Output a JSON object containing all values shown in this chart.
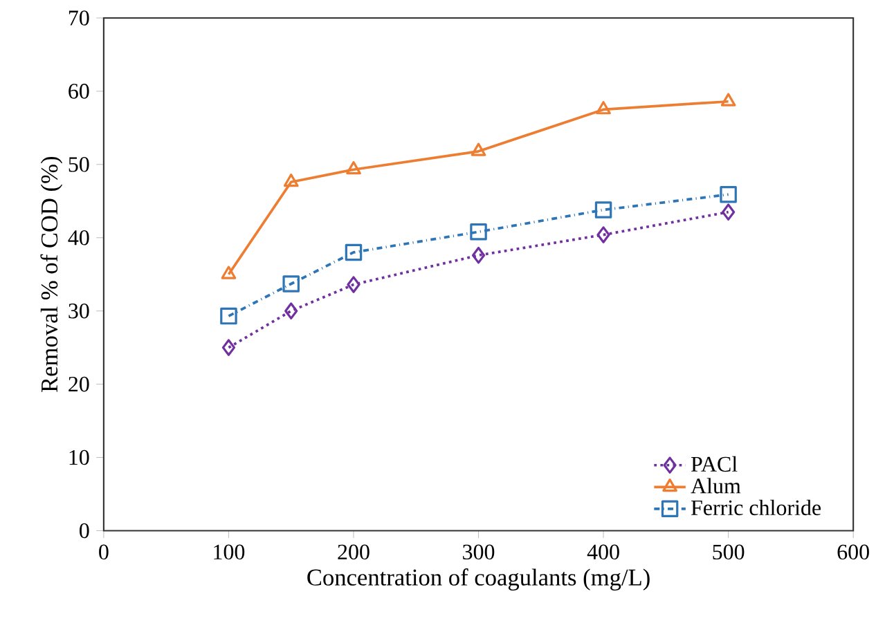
{
  "chart_data": {
    "type": "line",
    "xlabel": "Concentration of coagulants (mg/L)",
    "ylabel": "Removal % of COD (%)",
    "x": [
      100,
      150,
      200,
      300,
      400,
      500
    ],
    "series": [
      {
        "name": "PACl",
        "color": "#7030a0",
        "marker": "diamond",
        "line_style": "dotted",
        "values": [
          25,
          30,
          33.6,
          37.6,
          40.4,
          43.5
        ]
      },
      {
        "name": "Alum",
        "color": "#ed7d31",
        "marker": "triangle",
        "line_style": "solid",
        "values": [
          35,
          47.6,
          49.3,
          51.8,
          57.5,
          58.6
        ]
      },
      {
        "name": "Ferric chloride",
        "color": "#2e75b6",
        "marker": "square",
        "line_style": "dashdot",
        "values": [
          29.3,
          33.7,
          38,
          40.8,
          43.8,
          45.9
        ]
      }
    ],
    "xlim": [
      0,
      600
    ],
    "xticks": [
      0,
      100,
      200,
      300,
      400,
      500,
      600
    ],
    "ylim": [
      0,
      70
    ],
    "yticks": [
      0,
      10,
      20,
      30,
      40,
      50,
      60,
      70
    ],
    "grid": false,
    "legend": "bottom right"
  }
}
